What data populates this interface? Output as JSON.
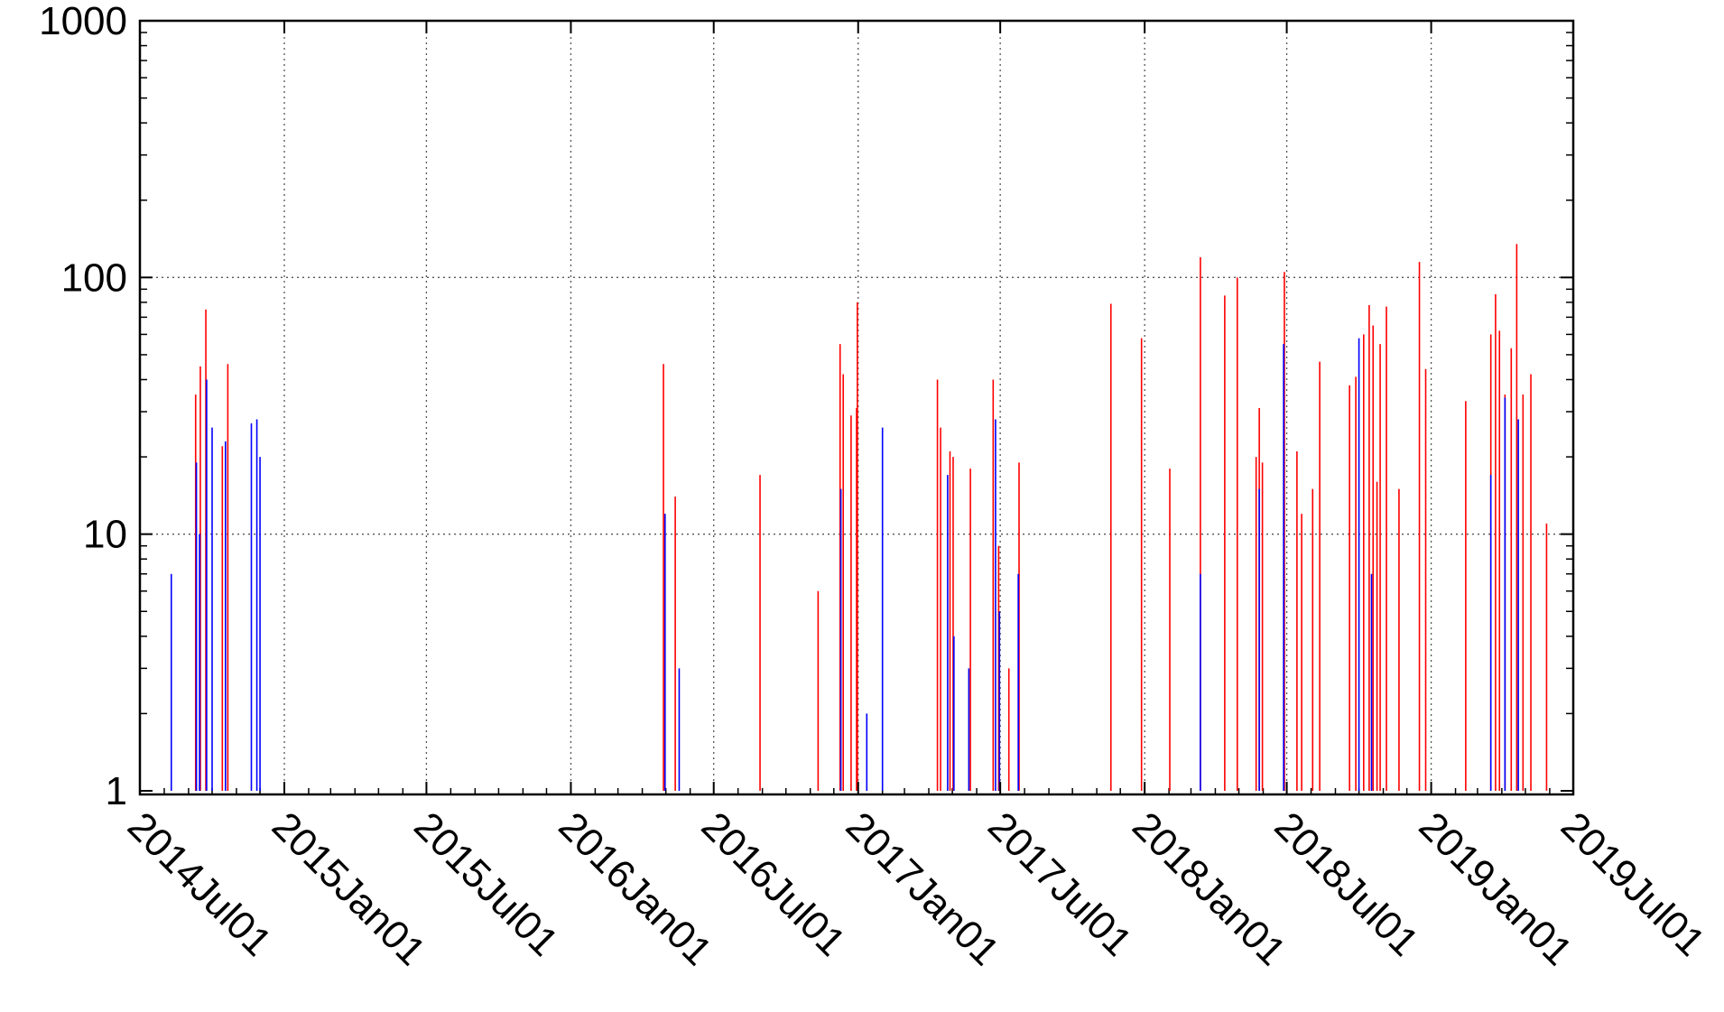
{
  "chart_data": {
    "type": "bar",
    "title": "",
    "xlabel": "",
    "ylabel": "",
    "y_scale": "log",
    "ylim": [
      1,
      1000
    ],
    "y_ticks": [
      "1",
      "10",
      "100",
      "1000"
    ],
    "xlim": [
      "2014-07-01",
      "2019-07-01"
    ],
    "x_ticks": [
      "2014Jul01",
      "2015Jan01",
      "2015Jul01",
      "2016Jan01",
      "2016Jul01",
      "2017Jan01",
      "2017Jul01",
      "2018Jan01",
      "2018Jul01",
      "2019Jan01",
      "2019Jul01"
    ],
    "grid": true,
    "legend": "none",
    "colors": {
      "red": "#ff0000",
      "blue": "#0000ff",
      "grid": "#555555",
      "axis": "#000000"
    },
    "series": [
      {
        "color": "red",
        "points": [
          [
            "2014-09-10",
            35
          ],
          [
            "2014-09-16",
            45
          ],
          [
            "2014-09-23",
            75
          ],
          [
            "2014-10-14",
            22
          ],
          [
            "2014-10-21",
            46
          ],
          [
            "2016-04-28",
            46
          ],
          [
            "2016-05-13",
            14
          ],
          [
            "2016-08-29",
            17
          ],
          [
            "2016-11-11",
            6
          ],
          [
            "2016-12-09",
            55
          ],
          [
            "2016-12-13",
            42
          ],
          [
            "2016-12-23",
            29
          ],
          [
            "2016-12-30",
            31
          ],
          [
            "2016-12-31",
            80
          ],
          [
            "2017-04-12",
            40
          ],
          [
            "2017-04-16",
            26
          ],
          [
            "2017-04-28",
            21
          ],
          [
            "2017-05-02",
            20
          ],
          [
            "2017-05-24",
            18
          ],
          [
            "2017-06-22",
            40
          ],
          [
            "2017-06-29",
            9
          ],
          [
            "2017-07-12",
            3
          ],
          [
            "2017-07-25",
            19
          ],
          [
            "2017-11-19",
            79
          ],
          [
            "2017-12-28",
            58
          ],
          [
            "2018-02-02",
            18
          ],
          [
            "2018-03-13",
            120
          ],
          [
            "2018-04-13",
            85
          ],
          [
            "2018-04-29",
            100
          ],
          [
            "2018-05-23",
            20
          ],
          [
            "2018-05-27",
            31
          ],
          [
            "2018-05-31",
            19
          ],
          [
            "2018-06-28",
            105
          ],
          [
            "2018-07-14",
            21
          ],
          [
            "2018-07-20",
            12
          ],
          [
            "2018-08-03",
            15
          ],
          [
            "2018-08-12",
            47
          ],
          [
            "2018-09-19",
            38
          ],
          [
            "2018-09-27",
            41
          ],
          [
            "2018-10-07",
            60
          ],
          [
            "2018-10-14",
            78
          ],
          [
            "2018-10-19",
            65
          ],
          [
            "2018-10-24",
            16
          ],
          [
            "2018-10-28",
            55
          ],
          [
            "2018-11-05",
            77
          ],
          [
            "2018-11-21",
            15
          ],
          [
            "2018-12-17",
            115
          ],
          [
            "2018-12-25",
            44
          ],
          [
            "2019-02-14",
            33
          ],
          [
            "2019-03-18",
            60
          ],
          [
            "2019-03-24",
            86
          ],
          [
            "2019-03-29",
            62
          ],
          [
            "2019-04-05",
            35
          ],
          [
            "2019-04-13",
            53
          ],
          [
            "2019-04-20",
            135
          ],
          [
            "2019-04-28",
            35
          ],
          [
            "2019-05-08",
            42
          ],
          [
            "2019-05-28",
            11
          ]
        ]
      },
      {
        "color": "blue",
        "points": [
          [
            "2014-08-10",
            7
          ],
          [
            "2014-09-11",
            19
          ],
          [
            "2014-09-15",
            10
          ],
          [
            "2014-09-24",
            40
          ],
          [
            "2014-10-01",
            26
          ],
          [
            "2014-10-18",
            23
          ],
          [
            "2014-11-20",
            27
          ],
          [
            "2014-11-27",
            28
          ],
          [
            "2014-12-01",
            20
          ],
          [
            "2016-04-30",
            12
          ],
          [
            "2016-05-18",
            3
          ],
          [
            "2016-12-10",
            15
          ],
          [
            "2017-01-12",
            2
          ],
          [
            "2017-02-01",
            26
          ],
          [
            "2017-04-25",
            17
          ],
          [
            "2017-05-03",
            4
          ],
          [
            "2017-05-22",
            3
          ],
          [
            "2017-06-25",
            28
          ],
          [
            "2017-06-30",
            5
          ],
          [
            "2017-07-24",
            7
          ],
          [
            "2018-03-13",
            7
          ],
          [
            "2018-05-27",
            15
          ],
          [
            "2018-06-27",
            55
          ],
          [
            "2018-10-01",
            58
          ],
          [
            "2018-10-17",
            7
          ],
          [
            "2019-03-18",
            17
          ],
          [
            "2019-04-05",
            34
          ],
          [
            "2019-04-22",
            28
          ]
        ]
      }
    ]
  }
}
